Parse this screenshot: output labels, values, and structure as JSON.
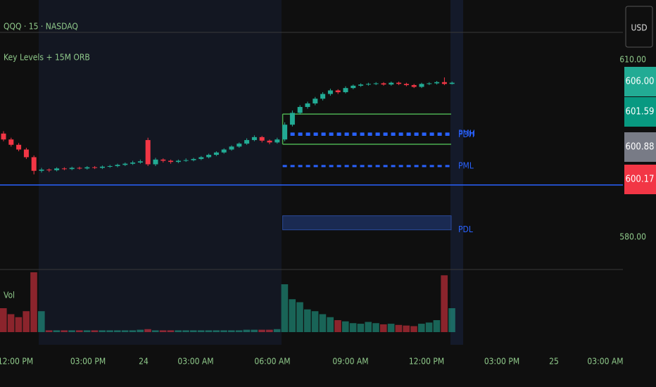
{
  "chart_data": {
    "type": "candlestick",
    "title": "QQQ · 15 · NASDAQ",
    "subtitle": "Key Levels + 15M ORB",
    "volume_label": "Vol",
    "currency": "USD",
    "up_color": "#22ab94",
    "down_color": "#f23645",
    "ylim": [
      574.5,
      620.1
    ],
    "yticks": [
      {
        "value": 580,
        "label": "580.00"
      },
      {
        "value": 610,
        "label": "610.00"
      }
    ],
    "x_labels": [
      "12:00 PM",
      "03:00 PM",
      "24",
      "03:00 AM",
      "06:00 AM",
      "09:00 AM",
      "12:00 PM",
      "03:00 PM",
      "25",
      "03:00 AM"
    ],
    "open": [
      597.5,
      596.5,
      595.6,
      594.8,
      593.5,
      591.2,
      591.4,
      591.3,
      591.6,
      591.5,
      591.7,
      591.6,
      591.8,
      591.7,
      591.9,
      592.0,
      592.2,
      592.4,
      592.6,
      596.4,
      592.3,
      593.1,
      592.9,
      592.7,
      592.9,
      593.0,
      593.2,
      593.5,
      593.9,
      594.3,
      594.8,
      595.3,
      595.8,
      596.4,
      596.9,
      596.3,
      596.0,
      596.5,
      599.0,
      601.0,
      602.0,
      602.6,
      603.4,
      604.2,
      604.8,
      604.5,
      605.2,
      605.6,
      605.8,
      605.9,
      606.0,
      605.8,
      606.1,
      605.9,
      605.7,
      605.4,
      605.9,
      606.0,
      606.2,
      605.9
    ],
    "close": [
      596.5,
      595.6,
      594.8,
      593.5,
      591.2,
      591.4,
      591.3,
      591.6,
      591.5,
      591.7,
      591.6,
      591.8,
      591.7,
      591.9,
      592.0,
      592.2,
      592.4,
      592.6,
      592.8,
      592.3,
      593.1,
      592.9,
      592.7,
      592.9,
      593.0,
      593.2,
      593.5,
      593.9,
      594.3,
      594.8,
      595.3,
      595.8,
      596.4,
      596.9,
      596.3,
      596.0,
      596.5,
      599.0,
      601.0,
      602.0,
      602.6,
      603.4,
      604.2,
      604.8,
      604.5,
      605.2,
      605.6,
      605.8,
      605.9,
      606.0,
      605.8,
      606.1,
      605.9,
      605.7,
      605.4,
      605.9,
      606.0,
      606.2,
      605.9,
      606.1
    ],
    "high": [
      597.9,
      596.8,
      595.9,
      595.1,
      593.8,
      591.7,
      591.6,
      591.8,
      591.8,
      591.9,
      591.9,
      592.0,
      592.0,
      592.1,
      592.2,
      592.4,
      592.6,
      592.9,
      593.1,
      596.8,
      593.4,
      593.3,
      593.1,
      593.1,
      593.3,
      593.4,
      593.7,
      594.1,
      594.5,
      595.0,
      595.5,
      596.0,
      596.7,
      597.2,
      597.1,
      596.5,
      596.8,
      599.4,
      601.4,
      602.3,
      602.9,
      603.7,
      604.5,
      605.1,
      605.0,
      605.5,
      605.8,
      606.0,
      606.1,
      606.2,
      606.2,
      606.3,
      606.3,
      606.1,
      605.9,
      606.1,
      606.2,
      606.4,
      607.0,
      606.3
    ],
    "low": [
      596.2,
      595.3,
      594.5,
      593.2,
      590.6,
      590.9,
      591.0,
      591.1,
      591.3,
      591.3,
      591.4,
      591.4,
      591.5,
      591.5,
      591.7,
      591.8,
      592.0,
      592.2,
      592.4,
      592.0,
      592.0,
      592.6,
      592.4,
      592.5,
      592.7,
      592.8,
      593.0,
      593.3,
      593.7,
      594.1,
      594.6,
      595.1,
      595.6,
      596.2,
      596.0,
      595.7,
      595.8,
      596.2,
      598.7,
      600.7,
      601.7,
      602.3,
      603.1,
      603.9,
      604.2,
      604.3,
      605.0,
      605.4,
      605.6,
      605.7,
      605.6,
      605.6,
      605.7,
      605.5,
      605.2,
      605.2,
      605.7,
      605.8,
      605.7,
      605.8
    ],
    "volume": [
      40,
      30,
      25,
      35,
      100,
      35,
      3,
      3,
      3,
      3,
      3,
      3,
      3,
      3,
      3,
      3,
      3,
      3,
      4,
      5,
      3,
      3,
      3,
      3,
      3,
      3,
      3,
      3,
      3,
      3,
      3,
      3,
      4,
      4,
      4,
      4,
      5,
      80,
      55,
      50,
      38,
      35,
      30,
      25,
      20,
      18,
      15,
      14,
      17,
      15,
      13,
      14,
      12,
      11,
      10,
      14,
      16,
      20,
      95,
      40
    ],
    "vol_ylim": [
      0,
      100
    ],
    "orb": [
      600.8,
      595.7
    ],
    "levels": [
      {
        "name": "PDH",
        "value": 597.3
      },
      {
        "name": "PMH",
        "value": 597.5
      },
      {
        "name": "PML",
        "value": 592.0
      },
      {
        "name": "PDL",
        "value": 582.4
      }
    ],
    "hline": 588.8,
    "price_labels": [
      {
        "value": 606.0,
        "label": "606.00",
        "color": "#22ab94"
      },
      {
        "value": 601.59,
        "label": "601.59",
        "color": "#089981"
      },
      {
        "value": 600.88,
        "label": "600.88",
        "color": "#787b86"
      },
      {
        "value": 600.17,
        "label": "600.17",
        "color": "#f23645"
      }
    ]
  }
}
